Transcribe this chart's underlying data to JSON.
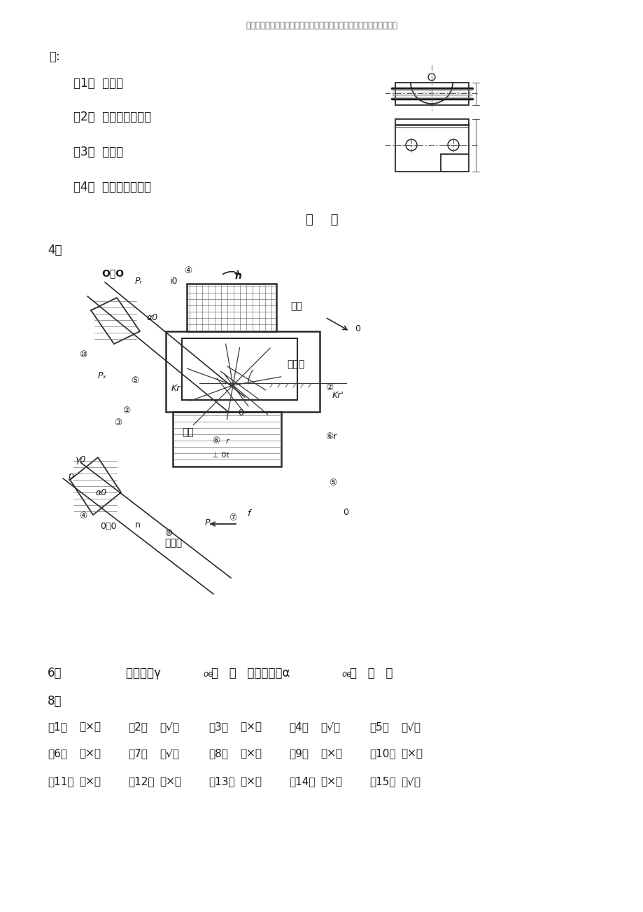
{
  "page_bg": "#ffffff",
  "header_text": "资料内容仅供您学习参考，如有不当或者侵权，请联系改正或者删除。",
  "title_ans": "答:",
  "items": [
    "（1）  落料；",
    "（2）  冲底板的二孔；",
    "（3）  弯曲；",
    "（4）  冲立壁的二孔。"
  ],
  "section_label": "下    编",
  "q4_label": "4、",
  "q6_line": "6、        工作前角γoe（   ＋   ）工作后角αoe（   －   ）",
  "q8_label": "8、",
  "answers_row1": [
    [
      "（1）",
      "（×）"
    ],
    [
      "（2）",
      "（√）"
    ],
    [
      "（3）",
      "（×）"
    ],
    [
      "（4）",
      "（√）"
    ],
    [
      "（5）",
      "（√）"
    ]
  ],
  "answers_row2": [
    [
      "（6）",
      "（×）"
    ],
    [
      "（7）",
      "（√）"
    ],
    [
      "（8）",
      "（×）"
    ],
    [
      "（9）",
      "（×）"
    ],
    [
      "（10）",
      "（×）"
    ]
  ],
  "answers_row3": [
    [
      "（11）",
      "（×）"
    ],
    [
      "（12）",
      "（×）"
    ],
    [
      "（13）",
      "（×）"
    ],
    [
      "（14）",
      "（×）"
    ],
    [
      "（15）",
      "（√）"
    ]
  ]
}
